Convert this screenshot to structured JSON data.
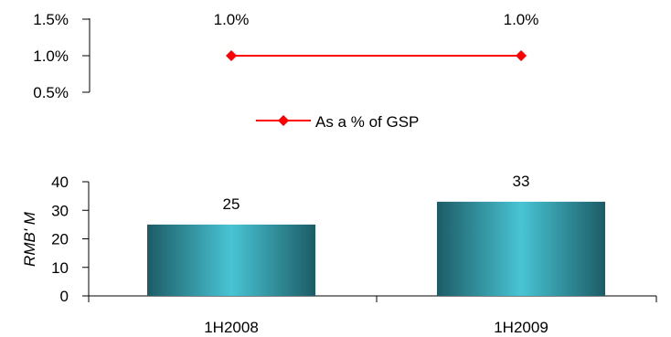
{
  "chart_data": [
    {
      "type": "line",
      "categories": [
        "1H2008",
        "1H2009"
      ],
      "ylim": [
        0.5,
        1.5
      ],
      "yticks": [
        "0.5%",
        "1.0%",
        "1.5%"
      ],
      "ytick_values": [
        0.5,
        1.0,
        1.5
      ],
      "series": [
        {
          "name": "As a % of GSP",
          "values": [
            1.0,
            1.0
          ],
          "labels": [
            "1.0%",
            "1.0%"
          ],
          "color": "#ff0000"
        }
      ],
      "legend": "bottom-center",
      "grid": false
    },
    {
      "type": "bar",
      "categories": [
        "1H2008",
        "1H2009"
      ],
      "values": [
        25,
        33
      ],
      "labels": [
        "25",
        "33"
      ],
      "ylabel": "RMB' M",
      "ylim": [
        0,
        40
      ],
      "yticks": [
        "0",
        "10",
        "20",
        "30",
        "40"
      ],
      "ytick_values": [
        0,
        10,
        20,
        30,
        40
      ],
      "bar_colors": {
        "edge": "#1c5c66",
        "center": "#48c4d4"
      },
      "grid": false
    }
  ]
}
